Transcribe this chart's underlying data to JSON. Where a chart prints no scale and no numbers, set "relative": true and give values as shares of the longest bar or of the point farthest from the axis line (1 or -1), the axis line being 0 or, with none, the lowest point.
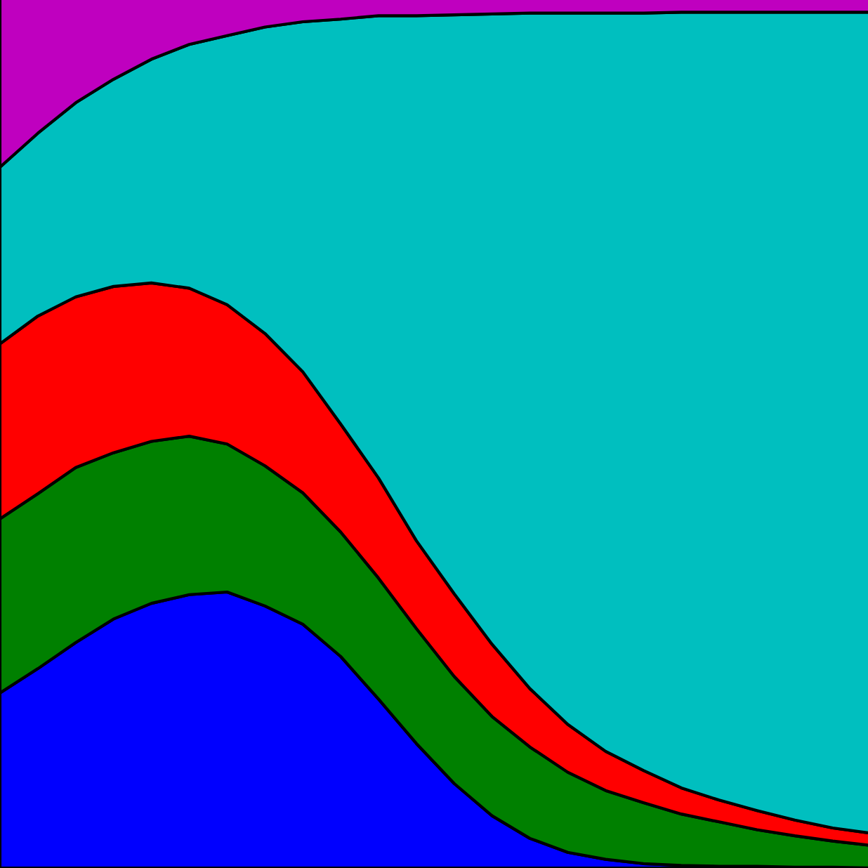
{
  "chart_data": {
    "type": "area",
    "stacked": true,
    "relative": true,
    "categories": [
      null,
      null,
      null,
      null,
      null,
      null,
      null,
      null,
      null,
      null,
      null,
      null,
      null,
      null,
      null,
      null,
      null,
      null,
      null,
      null,
      null,
      null,
      null,
      null
    ],
    "series": [
      {
        "color": "#0000ff",
        "values": [
          0.201,
          0.229,
          0.259,
          0.286,
          0.304,
          0.314,
          0.317,
          0.301,
          0.28,
          0.243,
          0.194,
          0.143,
          0.097,
          0.06,
          0.034,
          0.018,
          0.01,
          0.005,
          0.003,
          0.002,
          0.002,
          0.001,
          0.001,
          0.0
        ]
      },
      {
        "color": "#008000",
        "values": [
          0.2,
          0.201,
          0.201,
          0.191,
          0.186,
          0.182,
          0.17,
          0.161,
          0.151,
          0.143,
          0.139,
          0.132,
          0.123,
          0.114,
          0.105,
          0.092,
          0.079,
          0.07,
          0.059,
          0.051,
          0.042,
          0.036,
          0.03,
          0.026
        ]
      },
      {
        "color": "#ff0000",
        "values": [
          0.201,
          0.204,
          0.196,
          0.191,
          0.182,
          0.17,
          0.16,
          0.152,
          0.139,
          0.124,
          0.115,
          0.101,
          0.095,
          0.083,
          0.067,
          0.055,
          0.045,
          0.037,
          0.03,
          0.025,
          0.022,
          0.018,
          0.015,
          0.014
        ]
      },
      {
        "color": "#00bfbf",
        "values": [
          0.203,
          0.21,
          0.223,
          0.238,
          0.257,
          0.28,
          0.309,
          0.352,
          0.402,
          0.465,
          0.531,
          0.603,
          0.665,
          0.724,
          0.776,
          0.817,
          0.848,
          0.87,
          0.891,
          0.905,
          0.917,
          0.928,
          0.937,
          0.943
        ]
      },
      {
        "color": "#bf00bf",
        "values": [
          0.195,
          0.156,
          0.121,
          0.094,
          0.071,
          0.054,
          0.044,
          0.034,
          0.028,
          0.025,
          0.021,
          0.021,
          0.02,
          0.019,
          0.018,
          0.018,
          0.018,
          0.018,
          0.017,
          0.017,
          0.017,
          0.017,
          0.017,
          0.017
        ]
      }
    ]
  }
}
